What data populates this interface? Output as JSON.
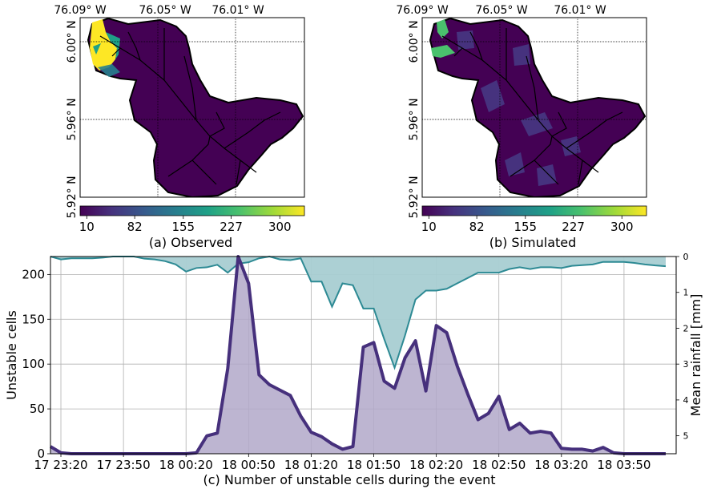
{
  "chart_data": [
    {
      "type": "heatmap",
      "caption": "(a) Observed",
      "lon_labels": [
        "76.09° W",
        "76.05° W",
        "76.01° W"
      ],
      "lat_labels": [
        "6.00° N",
        "5.96° N",
        "5.92° N"
      ],
      "colorbar": {
        "min": 10,
        "max": 300,
        "ticks": [
          "10",
          "82",
          "155",
          "227",
          "300"
        ],
        "colormap": "viridis"
      }
    },
    {
      "type": "heatmap",
      "caption": "(b) Simulated",
      "lon_labels": [
        "76.09° W",
        "76.05° W",
        "76.01° W"
      ],
      "lat_labels": [
        "6.00° N",
        "5.96° N",
        "5.92° N"
      ],
      "colorbar": {
        "min": 10,
        "max": 300,
        "ticks": [
          "10",
          "82",
          "155",
          "227",
          "300"
        ],
        "colormap": "viridis"
      }
    },
    {
      "type": "area",
      "caption": "(c) Number of unstable cells during the event",
      "ylabel": "Unstable cells",
      "y2label": "Mean rainfall [mm]",
      "ylim": [
        0,
        220
      ],
      "y2lim": [
        5.5,
        0
      ],
      "x_ticks": [
        "17 23:20",
        "17 23:50",
        "18 00:20",
        "18 00:50",
        "18 01:20",
        "18 01:50",
        "18 02:20",
        "18 02:50",
        "18 03:20",
        "18 03:50"
      ],
      "y_ticks": [
        0,
        50,
        100,
        150,
        200
      ],
      "y2_ticks": [
        0,
        1,
        2,
        3,
        4,
        5
      ],
      "grid": true,
      "colors": {
        "cells": "#46307c",
        "cells_fill": "#b1a8c9",
        "rain": "#2d8a94",
        "rain_fill": "#a8ced2"
      },
      "series": [
        {
          "x": [
            "17 23:15",
            "17 23:20",
            "17 23:25",
            "17 23:30",
            "17 23:35",
            "17 23:40",
            "17 23:45",
            "17 23:50",
            "17 23:55",
            "18 00:00",
            "18 00:05",
            "18 00:10",
            "18 00:15",
            "18 00:20",
            "18 00:25",
            "18 00:30",
            "18 00:35",
            "18 00:40",
            "18 00:45",
            "18 00:50",
            "18 00:55",
            "18 01:00",
            "18 01:05",
            "18 01:10",
            "18 01:15",
            "18 01:20",
            "18 01:25",
            "18 01:30",
            "18 01:35",
            "18 01:40",
            "18 01:45",
            "18 01:50",
            "18 01:55",
            "18 02:00",
            "18 02:05",
            "18 02:10",
            "18 02:15",
            "18 02:20",
            "18 02:25",
            "18 02:30",
            "18 02:35",
            "18 02:40",
            "18 02:45",
            "18 02:50",
            "18 02:55",
            "18 03:00",
            "18 03:05",
            "18 03:10",
            "18 03:15",
            "18 03:20",
            "18 03:25",
            "18 03:30",
            "18 03:35",
            "18 03:40",
            "18 03:45",
            "18 03:50",
            "18 03:55",
            "18 04:00",
            "18 04:05",
            "18 04:10"
          ],
          "values": [
            8,
            1,
            0,
            0,
            0,
            0,
            0,
            0,
            0,
            0,
            0,
            0,
            0,
            0,
            1,
            20,
            23,
            95,
            220,
            190,
            88,
            77,
            71,
            65,
            42,
            24,
            19,
            11,
            5,
            8,
            119,
            124,
            81,
            73,
            107,
            126,
            70,
            143,
            135,
            98,
            67,
            38,
            45,
            64,
            27,
            34,
            23,
            25,
            23,
            6,
            5,
            5,
            3,
            7,
            1,
            0,
            0,
            0,
            0,
            0
          ]
        },
        {
          "x": [
            "17 23:15",
            "17 23:20",
            "17 23:25",
            "17 23:30",
            "17 23:35",
            "17 23:40",
            "17 23:45",
            "17 23:50",
            "17 23:55",
            "18 00:00",
            "18 00:05",
            "18 00:10",
            "18 00:15",
            "18 00:20",
            "18 00:25",
            "18 00:30",
            "18 00:35",
            "18 00:40",
            "18 00:45",
            "18 00:50",
            "18 00:55",
            "18 01:00",
            "18 01:05",
            "18 01:10",
            "18 01:15",
            "18 01:20",
            "18 01:25",
            "18 01:30",
            "18 01:35",
            "18 01:40",
            "18 01:45",
            "18 01:50",
            "18 01:55",
            "18 02:00",
            "18 02:05",
            "18 02:10",
            "18 02:15",
            "18 02:20",
            "18 02:25",
            "18 02:30",
            "18 02:35",
            "18 02:40",
            "18 02:45",
            "18 02:50",
            "18 02:55",
            "18 03:00",
            "18 03:05",
            "18 03:10",
            "18 03:15",
            "18 03:20",
            "18 03:25",
            "18 03:30",
            "18 03:35",
            "18 03:40",
            "18 03:45",
            "18 03:50",
            "18 03:55",
            "18 04:00",
            "18 04:05",
            "18 04:10"
          ],
          "values": [
            0.0,
            0.08,
            0.05,
            0.05,
            0.05,
            0.03,
            0.0,
            0.0,
            0.0,
            0.06,
            0.08,
            0.13,
            0.22,
            0.42,
            0.32,
            0.3,
            0.23,
            0.45,
            0.2,
            0.16,
            0.05,
            0.0,
            0.08,
            0.1,
            0.05,
            0.7,
            0.7,
            1.4,
            0.75,
            0.8,
            1.45,
            1.45,
            2.3,
            3.1,
            2.2,
            1.2,
            0.95,
            0.95,
            0.9,
            0.75,
            0.6,
            0.45,
            0.45,
            0.45,
            0.35,
            0.3,
            0.35,
            0.3,
            0.3,
            0.32,
            0.26,
            0.24,
            0.22,
            0.15,
            0.15,
            0.15,
            0.18,
            0.22,
            0.25,
            0.27
          ]
        }
      ]
    }
  ]
}
